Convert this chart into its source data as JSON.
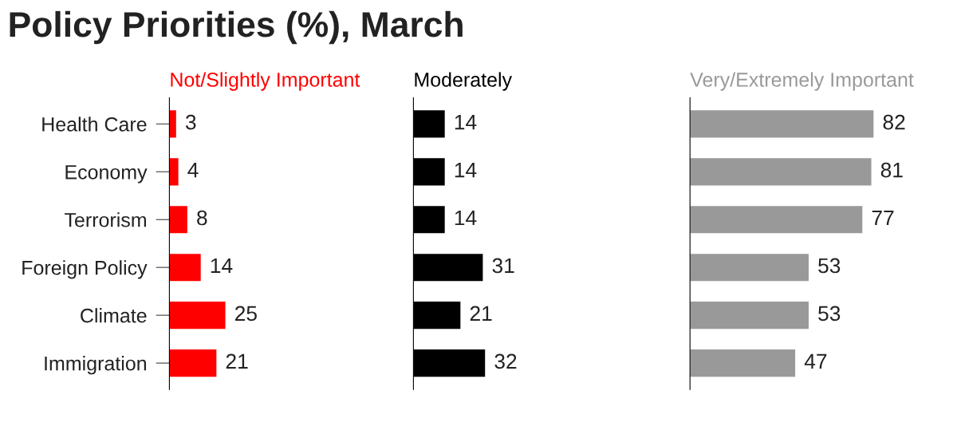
{
  "chart_data": [
    {
      "type": "bar",
      "orientation": "horizontal",
      "title": "Policy Priorities (%), March",
      "subtitle": "Not/Slightly Important",
      "categories": [
        "Health Care",
        "Economy",
        "Terrorism",
        "Foreign Policy",
        "Climate",
        "Immigration"
      ],
      "values": [
        3,
        4,
        8,
        14,
        25,
        21
      ],
      "color": "#ff0000",
      "data_labels": true,
      "tick_labels": "y",
      "grid": false,
      "legend": false
    },
    {
      "type": "bar",
      "orientation": "horizontal",
      "subtitle": "Moderately",
      "categories": [
        null,
        null,
        null,
        null,
        null,
        null
      ],
      "values": [
        14,
        14,
        14,
        31,
        21,
        32
      ],
      "color": "#000000",
      "data_labels": true,
      "tick_labels": false,
      "grid": false,
      "legend": false
    },
    {
      "type": "bar",
      "orientation": "horizontal",
      "subtitle": "Very/Extremely Important",
      "categories": [
        null,
        null,
        null,
        null,
        null,
        null
      ],
      "values": [
        82,
        81,
        77,
        53,
        53,
        47
      ],
      "color": "#999999",
      "data_labels": true,
      "tick_labels": false,
      "grid": false,
      "legend": false
    }
  ]
}
